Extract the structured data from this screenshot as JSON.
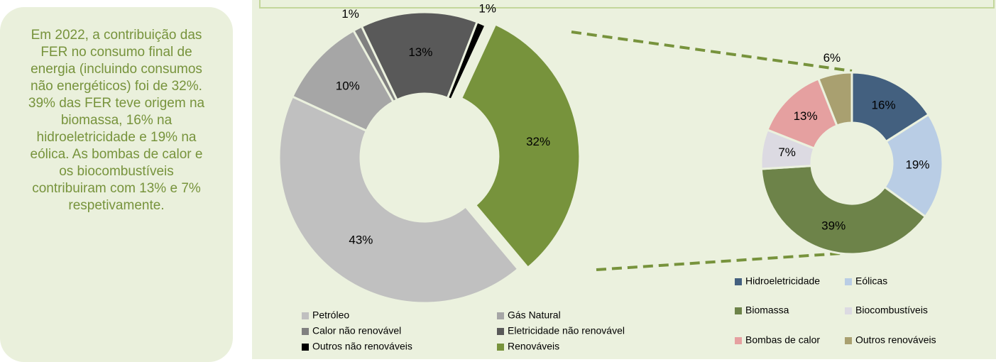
{
  "side_note": "Em 2022, a contribuição das FER no consumo final de energia (incluindo consumos não energéticos) foi de 32%.  39% das FER teve origem na biomassa, 16% na hidroeletricidade  e 19% na eólica. As bombas de calor e os biocombustíveis contribuiram com 13% e 7% respetivamente.",
  "chart_data": [
    {
      "type": "donut",
      "categories": [
        "Petróleo",
        "Gás Natural",
        "Calor não renovável",
        "Eletricidade não renovável",
        "Outros não renováveis",
        "Renováveis"
      ],
      "values": [
        43,
        10,
        1,
        13,
        1,
        32
      ],
      "value_labels": [
        "43%",
        "10%",
        "1%",
        "13%",
        "1%",
        "32%"
      ],
      "colors": [
        "#c0c0c0",
        "#a6a6a6",
        "#808080",
        "#595959",
        "#000000",
        "#77933c"
      ],
      "first_slice_angle": 140,
      "explode": 5
    },
    {
      "type": "donut",
      "categories": [
        "Hidroeletricidade",
        "Eólicas",
        "Biomassa",
        "Biocombustíveis",
        "Bombas de calor",
        "Outros renováveis"
      ],
      "values": [
        16,
        19,
        39,
        7,
        13,
        6
      ],
      "value_labels": [
        "16%",
        "19%",
        "39%",
        "7%",
        "13%",
        "6%"
      ],
      "colors": [
        "#43607f",
        "#b9cde5",
        "#6d8349",
        "#dcdae2",
        "#e5a0a0",
        "#a9a070"
      ],
      "first_slice_angle": 0
    }
  ]
}
